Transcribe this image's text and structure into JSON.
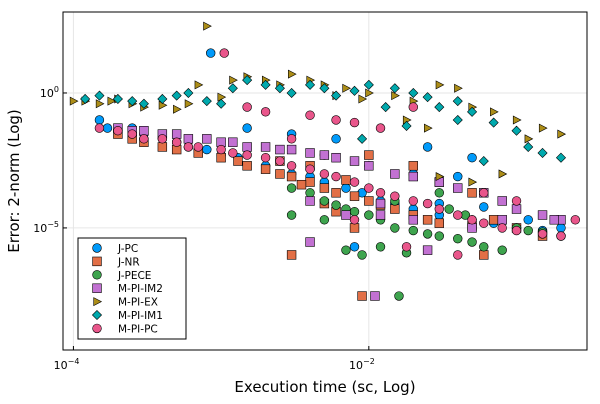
{
  "chart_data": {
    "type": "scatter",
    "xlabel": "Execution time (sc, Log)",
    "ylabel": "Error: 2-norm (Log)",
    "xscale": "log",
    "yscale": "log",
    "xlim": [
      8.5e-05,
      0.3
    ],
    "ylim": [
      3e-10,
      1000
    ],
    "xticks": [
      {
        "value": 0.0001,
        "base": "10",
        "exp": "−4"
      },
      {
        "value": 0.01,
        "base": "10",
        "exp": "−2"
      }
    ],
    "yticks": [
      {
        "value": 1,
        "base": "10",
        "exp": "0"
      },
      {
        "value": 1e-05,
        "base": "10",
        "exp": "−5"
      }
    ],
    "grid": true,
    "legend_position": "bottom-left",
    "series": [
      {
        "name": "J-PC",
        "marker": "circle",
        "color": "#009AFA",
        "points": [
          [
            0.00015,
            0.1
          ],
          [
            0.00017,
            0.05
          ],
          [
            0.0002,
            0.04
          ],
          [
            0.00025,
            0.05
          ],
          [
            0.0003,
            0.03
          ],
          [
            0.0004,
            0.02
          ],
          [
            0.0005,
            0.015
          ],
          [
            0.0006,
            0.01
          ],
          [
            0.00085,
            30
          ],
          [
            0.0008,
            0.008
          ],
          [
            0.001,
            0.005
          ],
          [
            0.0013,
            0.004
          ],
          [
            0.002,
            0.002
          ],
          [
            0.003,
            0.001
          ],
          [
            0.004,
            0.0008
          ],
          [
            0.005,
            0.0005
          ],
          [
            0.007,
            0.0003
          ],
          [
            0.009,
            0.0002
          ],
          [
            0.012,
            0.0001
          ],
          [
            0.015,
            8e-05
          ],
          [
            0.02,
            5e-05
          ],
          [
            0.03,
            3e-05
          ],
          [
            0.05,
            2e-05
          ],
          [
            0.07,
            1.5e-05
          ],
          [
            0.1,
            1e-05
          ],
          [
            0.15,
            8e-06
          ],
          [
            0.008,
            2e-06
          ],
          [
            0.03,
            8e-05
          ],
          [
            0.06,
            6e-05
          ],
          [
            0.12,
            2e-05
          ],
          [
            0.2,
            1e-05
          ],
          [
            0.005,
            0.005
          ],
          [
            0.01,
            0.002
          ],
          [
            0.02,
            0.001
          ],
          [
            0.04,
            0.0008
          ],
          [
            0.025,
            0.01
          ],
          [
            0.05,
            0.004
          ],
          [
            0.003,
            0.03
          ],
          [
            0.0015,
            0.05
          ],
          [
            0.006,
            0.02
          ]
        ]
      },
      {
        "name": "J-NR",
        "marker": "square",
        "color": "#E26F46",
        "points": [
          [
            0.0002,
            0.03
          ],
          [
            0.00025,
            0.02
          ],
          [
            0.0003,
            0.015
          ],
          [
            0.0004,
            0.01
          ],
          [
            0.0005,
            0.008
          ],
          [
            0.0007,
            0.006
          ],
          [
            0.001,
            0.004
          ],
          [
            0.0013,
            0.003
          ],
          [
            0.0015,
            0.002
          ],
          [
            0.002,
            0.0015
          ],
          [
            0.0025,
            0.001
          ],
          [
            0.003,
            0.0008
          ],
          [
            0.004,
            0.0005
          ],
          [
            0.005,
            0.0003
          ],
          [
            0.006,
            0.0002
          ],
          [
            0.008,
            0.00015
          ],
          [
            0.01,
            0.0001
          ],
          [
            0.012,
            7e-05
          ],
          [
            0.015,
            5e-05
          ],
          [
            0.02,
            3e-05
          ],
          [
            0.025,
            2e-05
          ],
          [
            0.03,
            1.5e-05
          ],
          [
            0.05,
            1.2e-05
          ],
          [
            0.003,
            1e-06
          ],
          [
            0.005,
            8e-05
          ],
          [
            0.006,
            4e-05
          ],
          [
            0.0035,
            0.0004
          ],
          [
            0.0025,
            0.003
          ],
          [
            0.004,
            0.002
          ],
          [
            0.007,
            0.0006
          ],
          [
            0.008,
            1e-05
          ],
          [
            0.01,
            0.005
          ],
          [
            0.02,
            0.002
          ],
          [
            0.03,
            0.0005
          ],
          [
            0.05,
            0.0002
          ],
          [
            0.07,
            2e-05
          ],
          [
            0.1,
            1e-05
          ],
          [
            0.15,
            5e-06
          ],
          [
            0.06,
            1e-06
          ],
          [
            0.009,
            3e-08
          ]
        ]
      },
      {
        "name": "J-PECE",
        "marker": "circle",
        "color": "#3EA44E",
        "points": [
          [
            0.003,
            0.0003
          ],
          [
            0.004,
            0.0002
          ],
          [
            0.005,
            0.0001
          ],
          [
            0.006,
            7e-05
          ],
          [
            0.007,
            5e-05
          ],
          [
            0.008,
            4e-05
          ],
          [
            0.01,
            3e-05
          ],
          [
            0.012,
            2e-05
          ],
          [
            0.015,
            1e-05
          ],
          [
            0.02,
            8e-06
          ],
          [
            0.025,
            6e-06
          ],
          [
            0.03,
            5e-06
          ],
          [
            0.04,
            4e-06
          ],
          [
            0.05,
            3e-06
          ],
          [
            0.06,
            2e-06
          ],
          [
            0.08,
            1.5e-06
          ],
          [
            0.1,
            1e-05
          ],
          [
            0.12,
            8e-06
          ],
          [
            0.15,
            7e-06
          ],
          [
            0.2,
            5e-06
          ],
          [
            0.007,
            1.5e-06
          ],
          [
            0.012,
            2e-06
          ],
          [
            0.009,
            1e-06
          ],
          [
            0.018,
            1.2e-06
          ],
          [
            0.035,
            5e-05
          ],
          [
            0.045,
            3e-05
          ],
          [
            0.003,
            3e-05
          ],
          [
            0.005,
            2e-05
          ],
          [
            0.015,
            0.0001
          ],
          [
            0.03,
            0.0002
          ],
          [
            0.016,
            3e-08
          ]
        ]
      },
      {
        "name": "M-PI-IM2",
        "marker": "square",
        "color": "#C271D2",
        "points": [
          [
            0.0002,
            0.05
          ],
          [
            0.00025,
            0.04
          ],
          [
            0.0003,
            0.04
          ],
          [
            0.0004,
            0.03
          ],
          [
            0.0005,
            0.03
          ],
          [
            0.0006,
            0.02
          ],
          [
            0.0008,
            0.02
          ],
          [
            0.001,
            0.015
          ],
          [
            0.0012,
            0.015
          ],
          [
            0.0015,
            0.01
          ],
          [
            0.002,
            0.01
          ],
          [
            0.0025,
            0.008
          ],
          [
            0.003,
            0.008
          ],
          [
            0.004,
            0.006
          ],
          [
            0.005,
            0.005
          ],
          [
            0.006,
            0.004
          ],
          [
            0.008,
            0.003
          ],
          [
            0.01,
            0.002
          ],
          [
            0.015,
            0.001
          ],
          [
            0.02,
            0.0008
          ],
          [
            0.03,
            0.0005
          ],
          [
            0.04,
            0.0003
          ],
          [
            0.06,
            0.0002
          ],
          [
            0.08,
            0.0001
          ],
          [
            0.1,
            5e-05
          ],
          [
            0.15,
            3e-05
          ],
          [
            0.2,
            2e-05
          ],
          [
            0.012,
            3e-05
          ],
          [
            0.02,
            2e-05
          ],
          [
            0.05,
            1e-05
          ],
          [
            0.08,
            2e-05
          ],
          [
            0.18,
            2e-05
          ],
          [
            0.025,
            1.5e-06
          ],
          [
            0.011,
            3e-08
          ],
          [
            0.004,
            0.0001
          ],
          [
            0.007,
            3e-05
          ],
          [
            0.004,
            3e-06
          ],
          [
            0.012,
            8e-05
          ]
        ]
      },
      {
        "name": "M-PI-EX",
        "marker": "triangle",
        "color": "#AC8D18",
        "points": [
          [
            0.0001,
            0.5
          ],
          [
            0.00012,
            0.5
          ],
          [
            0.00015,
            0.4
          ],
          [
            0.00018,
            0.5
          ],
          [
            0.0002,
            0.6
          ],
          [
            0.00025,
            0.4
          ],
          [
            0.0003,
            0.3
          ],
          [
            0.0004,
            0.35
          ],
          [
            0.0005,
            0.25
          ],
          [
            0.0006,
            0.4
          ],
          [
            0.0007,
            2
          ],
          [
            0.0008,
            300
          ],
          [
            0.001,
            0.7
          ],
          [
            0.0012,
            3
          ],
          [
            0.0015,
            4
          ],
          [
            0.002,
            3
          ],
          [
            0.0025,
            2
          ],
          [
            0.003,
            5
          ],
          [
            0.004,
            3
          ],
          [
            0.005,
            2
          ],
          [
            0.007,
            1.5
          ],
          [
            0.01,
            1
          ],
          [
            0.015,
            0.8
          ],
          [
            0.02,
            0.5
          ],
          [
            0.03,
            2
          ],
          [
            0.04,
            1.5
          ],
          [
            0.05,
            0.3
          ],
          [
            0.07,
            0.2
          ],
          [
            0.1,
            0.1
          ],
          [
            0.15,
            0.05
          ],
          [
            0.2,
            0.03
          ],
          [
            0.03,
            0.0008
          ],
          [
            0.05,
            0.0005
          ],
          [
            0.08,
            0.001
          ],
          [
            0.12,
            0.02
          ],
          [
            0.009,
            0.6
          ],
          [
            0.006,
            0.8
          ],
          [
            0.018,
            0.1
          ],
          [
            0.025,
            0.05
          ]
        ]
      },
      {
        "name": "M-PI-IM1",
        "marker": "diamond",
        "color": "#00A9AD",
        "points": [
          [
            0.00012,
            0.6
          ],
          [
            0.00015,
            0.8
          ],
          [
            0.0002,
            0.6
          ],
          [
            0.00025,
            0.5
          ],
          [
            0.0003,
            0.4
          ],
          [
            0.0004,
            0.6
          ],
          [
            0.0005,
            0.8
          ],
          [
            0.0006,
            1
          ],
          [
            0.0008,
            0.5
          ],
          [
            0.001,
            0.4
          ],
          [
            0.0012,
            1.5
          ],
          [
            0.0015,
            3
          ],
          [
            0.002,
            2
          ],
          [
            0.0025,
            1.5
          ],
          [
            0.003,
            1
          ],
          [
            0.004,
            2
          ],
          [
            0.005,
            1.5
          ],
          [
            0.006,
            0.8
          ],
          [
            0.008,
            1.2
          ],
          [
            0.01,
            2
          ],
          [
            0.015,
            1.5
          ],
          [
            0.02,
            1
          ],
          [
            0.03,
            0.3
          ],
          [
            0.04,
            0.5
          ],
          [
            0.05,
            0.2
          ],
          [
            0.07,
            0.08
          ],
          [
            0.1,
            0.04
          ],
          [
            0.12,
            0.01
          ],
          [
            0.15,
            0.006
          ],
          [
            0.2,
            0.004
          ],
          [
            0.06,
            0.003
          ],
          [
            0.04,
            0.1
          ],
          [
            0.025,
            0.7
          ],
          [
            0.013,
            0.3
          ],
          [
            0.009,
            0.02
          ],
          [
            0.018,
            0.06
          ]
        ]
      },
      {
        "name": "M-PI-PC",
        "marker": "circle",
        "color": "#E9568B",
        "points": [
          [
            0.00015,
            0.05
          ],
          [
            0.0002,
            0.04
          ],
          [
            0.00025,
            0.03
          ],
          [
            0.0003,
            0.02
          ],
          [
            0.0004,
            0.02
          ],
          [
            0.0005,
            0.015
          ],
          [
            0.0006,
            0.01
          ],
          [
            0.0007,
            0.01
          ],
          [
            0.001,
            0.008
          ],
          [
            0.00105,
            30
          ],
          [
            0.0012,
            0.006
          ],
          [
            0.0015,
            0.005
          ],
          [
            0.002,
            0.004
          ],
          [
            0.0025,
            0.003
          ],
          [
            0.003,
            0.002
          ],
          [
            0.004,
            0.0015
          ],
          [
            0.005,
            0.001
          ],
          [
            0.006,
            0.0008
          ],
          [
            0.008,
            0.0005
          ],
          [
            0.01,
            0.0003
          ],
          [
            0.012,
            0.0002
          ],
          [
            0.015,
            0.00015
          ],
          [
            0.02,
            0.0001
          ],
          [
            0.025,
            8e-05
          ],
          [
            0.03,
            5e-05
          ],
          [
            0.04,
            3e-05
          ],
          [
            0.05,
            2e-05
          ],
          [
            0.06,
            1.5e-05
          ],
          [
            0.08,
            1e-05
          ],
          [
            0.1,
            8e-06
          ],
          [
            0.15,
            6e-06
          ],
          [
            0.2,
            5e-06
          ],
          [
            0.25,
            2e-05
          ],
          [
            0.002,
            0.2
          ],
          [
            0.004,
            0.15
          ],
          [
            0.006,
            0.1
          ],
          [
            0.008,
            0.08
          ],
          [
            0.012,
            0.05
          ],
          [
            0.02,
            0.3
          ],
          [
            0.0015,
            0.3
          ],
          [
            0.003,
            0.02
          ],
          [
            0.018,
            2e-06
          ],
          [
            0.04,
            1e-06
          ],
          [
            0.008,
            2e-05
          ],
          [
            0.06,
            0.0002
          ],
          [
            0.1,
            0.0001
          ]
        ]
      }
    ]
  }
}
